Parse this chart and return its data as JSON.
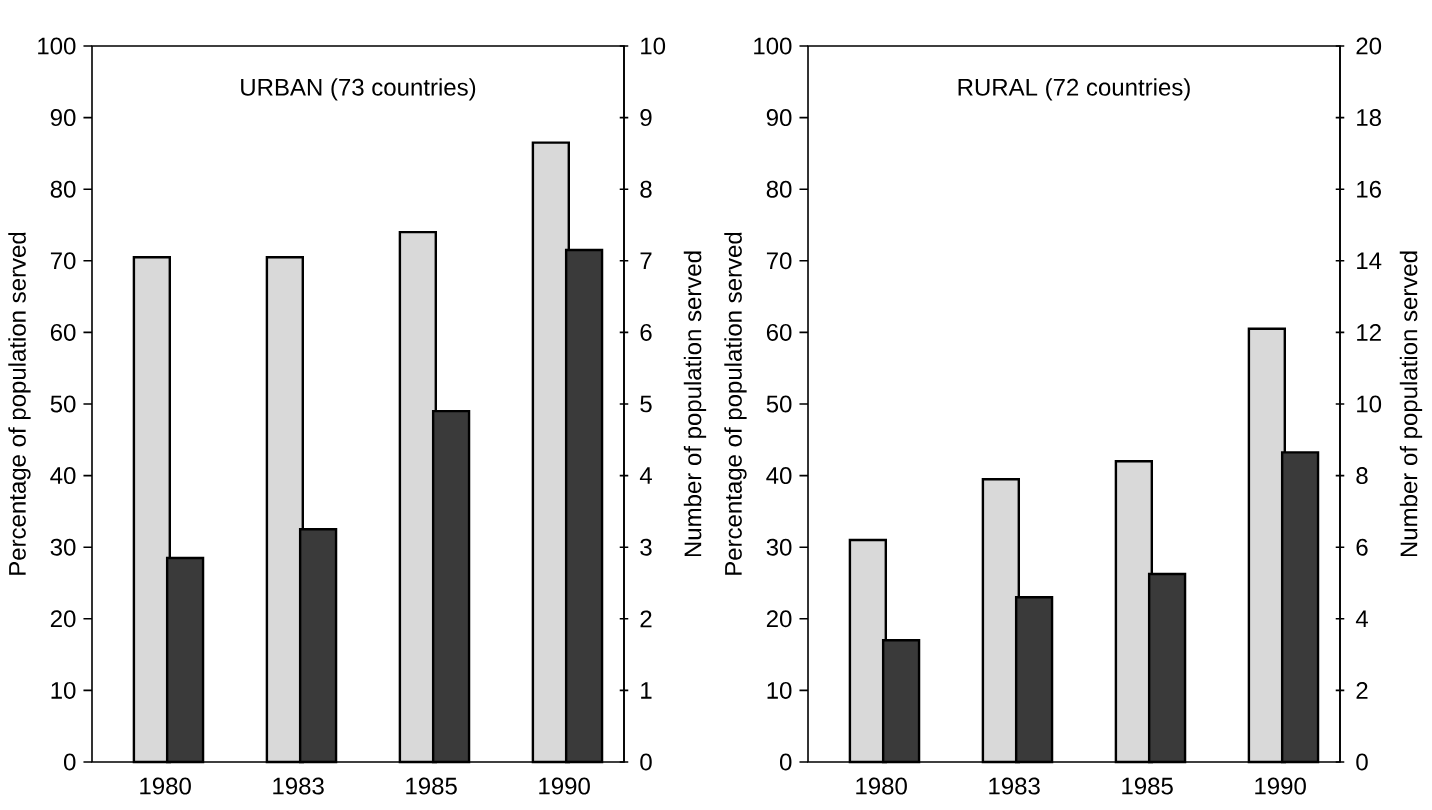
{
  "chart_data": [
    {
      "type": "bar",
      "title": "URBAN (73 countries)",
      "ylabel": "Percentage of population served",
      "y2label": "Number of population served",
      "categories": [
        "1980",
        "1983",
        "1985",
        "1990"
      ],
      "series": [
        {
          "color": "#d9d9d9",
          "values": [
            70.5,
            70.5,
            74,
            86.5
          ]
        },
        {
          "color": "#3a3a3a",
          "axis": "y2",
          "values": [
            2.85,
            3.25,
            4.9,
            7.15
          ]
        }
      ],
      "ylim": [
        0,
        100
      ],
      "yticks": [
        0,
        10,
        20,
        30,
        40,
        50,
        60,
        70,
        80,
        90,
        100
      ],
      "y2lim": [
        0,
        10
      ],
      "y2ticks": [
        0,
        1,
        2,
        3,
        4,
        5,
        6,
        7,
        8,
        9,
        10
      ]
    },
    {
      "type": "bar",
      "title": "RURAL (72 countries)",
      "ylabel": "Percentage of population served",
      "y2label": "Number of population served",
      "categories": [
        "1980",
        "1983",
        "1985",
        "1990"
      ],
      "series": [
        {
          "color": "#d9d9d9",
          "values": [
            31,
            39.5,
            42,
            60.5
          ]
        },
        {
          "color": "#3a3a3a",
          "axis": "y2",
          "values": [
            3.4,
            4.6,
            5.25,
            8.65
          ]
        }
      ],
      "ylim": [
        0,
        100
      ],
      "yticks": [
        0,
        10,
        20,
        30,
        40,
        50,
        60,
        70,
        80,
        90,
        100
      ],
      "y2lim": [
        0,
        20
      ],
      "y2ticks": [
        0,
        2,
        4,
        6,
        8,
        10,
        12,
        14,
        16,
        18,
        20
      ]
    }
  ]
}
